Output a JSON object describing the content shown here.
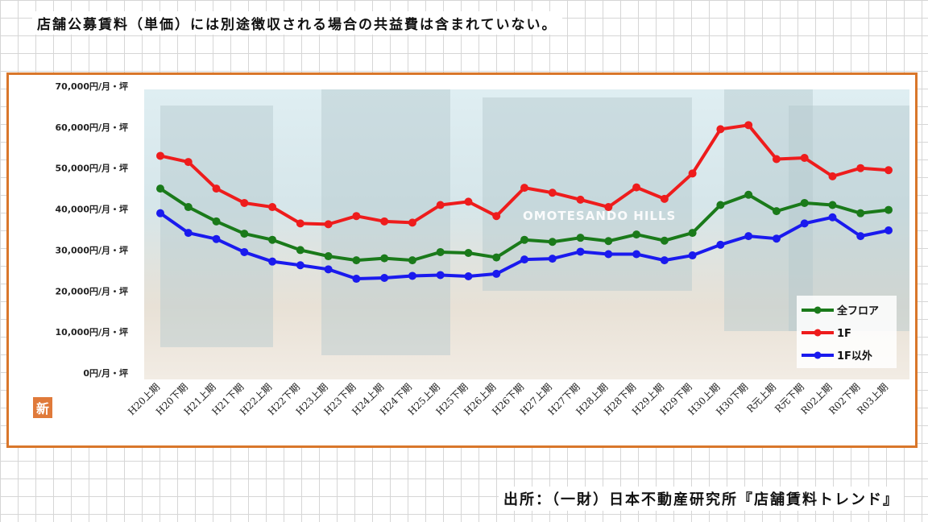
{
  "note": "店舗公募賃料（単価）には別途徴収される場合の共益費は含まれていない。",
  "source": "出所：（一財）日本不動産研究所『店舗賃料トレンド』",
  "photo_sign": "OMOTESANDO HILLS",
  "new_badge": "新",
  "chart_data": {
    "type": "line",
    "title": "",
    "xlabel": "",
    "ylabel": "",
    "ylim": [
      0,
      70000
    ],
    "yticks": [
      0,
      10000,
      20000,
      30000,
      40000,
      50000,
      60000,
      70000
    ],
    "ytick_labels": [
      "0円/月・坪",
      "10,000円/月・坪",
      "20,000円/月・坪",
      "30,000円/月・坪",
      "40,000円/月・坪",
      "50,000円/月・坪",
      "60,000円/月・坪",
      "70,000円/月・坪"
    ],
    "categories": [
      "H20上期",
      "H20下期",
      "H21上期",
      "H21下期",
      "H22上期",
      "H22下期",
      "H23上期",
      "H23下期",
      "H24上期",
      "H24下期",
      "H25上期",
      "H25下期",
      "H26上期",
      "H26下期",
      "H27上期",
      "H27下期",
      "H28上期",
      "H28下期",
      "H29上期",
      "H29下期",
      "H30上期",
      "H30下期",
      "R元上期",
      "R元下期",
      "R02上期",
      "R02下期",
      "R03上期"
    ],
    "series": [
      {
        "name": "全フロア",
        "color": "#1a7a1a",
        "values": [
          45000,
          40500,
          37000,
          34000,
          32500,
          30000,
          28500,
          27500,
          28000,
          27500,
          29500,
          29300,
          28200,
          32500,
          32000,
          33000,
          32200,
          33800,
          32300,
          34200,
          41000,
          43500,
          39500,
          41500,
          41000,
          39000,
          39800
        ]
      },
      {
        "name": "1F",
        "color": "#ee1c1c",
        "values": [
          53000,
          51500,
          45000,
          41500,
          40500,
          36500,
          36300,
          38300,
          37000,
          36700,
          41000,
          41800,
          38300,
          45200,
          44000,
          42300,
          40500,
          45300,
          42500,
          48700,
          59500,
          60500,
          52200,
          52500,
          48000,
          50000,
          49500
        ]
      },
      {
        "name": "1F以外",
        "color": "#1a1aee",
        "values": [
          39000,
          34200,
          32700,
          29500,
          27200,
          26300,
          25300,
          23000,
          23200,
          23700,
          23900,
          23600,
          24200,
          27700,
          27900,
          29600,
          29000,
          29000,
          27500,
          28700,
          31300,
          33400,
          32800,
          36500,
          38000,
          33400,
          34800
        ]
      }
    ],
    "grid": false,
    "legend": "bottom-right"
  }
}
